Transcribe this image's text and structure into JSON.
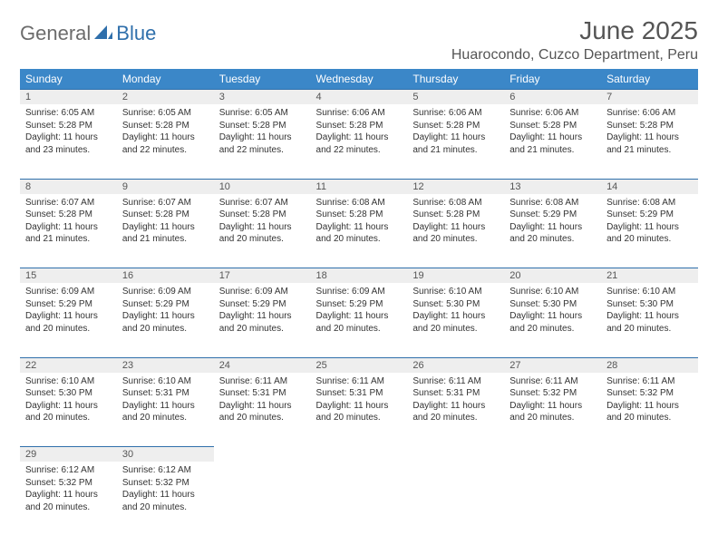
{
  "brand": {
    "part1": "General",
    "part2": "Blue"
  },
  "title": "June 2025",
  "location": "Huarocondo, Cuzco Department, Peru",
  "colors": {
    "header_bg": "#3b87c8",
    "header_text": "#ffffff",
    "daynum_bg": "#eeeeee",
    "daynum_border": "#2f6fab",
    "text": "#333333",
    "title_text": "#555555",
    "logo_gray": "#6c6c6c",
    "logo_blue": "#2f6fab"
  },
  "weekdays": [
    "Sunday",
    "Monday",
    "Tuesday",
    "Wednesday",
    "Thursday",
    "Friday",
    "Saturday"
  ],
  "weeks": [
    [
      {
        "n": "1",
        "sunrise": "Sunrise: 6:05 AM",
        "sunset": "Sunset: 5:28 PM",
        "day1": "Daylight: 11 hours",
        "day2": "and 23 minutes."
      },
      {
        "n": "2",
        "sunrise": "Sunrise: 6:05 AM",
        "sunset": "Sunset: 5:28 PM",
        "day1": "Daylight: 11 hours",
        "day2": "and 22 minutes."
      },
      {
        "n": "3",
        "sunrise": "Sunrise: 6:05 AM",
        "sunset": "Sunset: 5:28 PM",
        "day1": "Daylight: 11 hours",
        "day2": "and 22 minutes."
      },
      {
        "n": "4",
        "sunrise": "Sunrise: 6:06 AM",
        "sunset": "Sunset: 5:28 PM",
        "day1": "Daylight: 11 hours",
        "day2": "and 22 minutes."
      },
      {
        "n": "5",
        "sunrise": "Sunrise: 6:06 AM",
        "sunset": "Sunset: 5:28 PM",
        "day1": "Daylight: 11 hours",
        "day2": "and 21 minutes."
      },
      {
        "n": "6",
        "sunrise": "Sunrise: 6:06 AM",
        "sunset": "Sunset: 5:28 PM",
        "day1": "Daylight: 11 hours",
        "day2": "and 21 minutes."
      },
      {
        "n": "7",
        "sunrise": "Sunrise: 6:06 AM",
        "sunset": "Sunset: 5:28 PM",
        "day1": "Daylight: 11 hours",
        "day2": "and 21 minutes."
      }
    ],
    [
      {
        "n": "8",
        "sunrise": "Sunrise: 6:07 AM",
        "sunset": "Sunset: 5:28 PM",
        "day1": "Daylight: 11 hours",
        "day2": "and 21 minutes."
      },
      {
        "n": "9",
        "sunrise": "Sunrise: 6:07 AM",
        "sunset": "Sunset: 5:28 PM",
        "day1": "Daylight: 11 hours",
        "day2": "and 21 minutes."
      },
      {
        "n": "10",
        "sunrise": "Sunrise: 6:07 AM",
        "sunset": "Sunset: 5:28 PM",
        "day1": "Daylight: 11 hours",
        "day2": "and 20 minutes."
      },
      {
        "n": "11",
        "sunrise": "Sunrise: 6:08 AM",
        "sunset": "Sunset: 5:28 PM",
        "day1": "Daylight: 11 hours",
        "day2": "and 20 minutes."
      },
      {
        "n": "12",
        "sunrise": "Sunrise: 6:08 AM",
        "sunset": "Sunset: 5:28 PM",
        "day1": "Daylight: 11 hours",
        "day2": "and 20 minutes."
      },
      {
        "n": "13",
        "sunrise": "Sunrise: 6:08 AM",
        "sunset": "Sunset: 5:29 PM",
        "day1": "Daylight: 11 hours",
        "day2": "and 20 minutes."
      },
      {
        "n": "14",
        "sunrise": "Sunrise: 6:08 AM",
        "sunset": "Sunset: 5:29 PM",
        "day1": "Daylight: 11 hours",
        "day2": "and 20 minutes."
      }
    ],
    [
      {
        "n": "15",
        "sunrise": "Sunrise: 6:09 AM",
        "sunset": "Sunset: 5:29 PM",
        "day1": "Daylight: 11 hours",
        "day2": "and 20 minutes."
      },
      {
        "n": "16",
        "sunrise": "Sunrise: 6:09 AM",
        "sunset": "Sunset: 5:29 PM",
        "day1": "Daylight: 11 hours",
        "day2": "and 20 minutes."
      },
      {
        "n": "17",
        "sunrise": "Sunrise: 6:09 AM",
        "sunset": "Sunset: 5:29 PM",
        "day1": "Daylight: 11 hours",
        "day2": "and 20 minutes."
      },
      {
        "n": "18",
        "sunrise": "Sunrise: 6:09 AM",
        "sunset": "Sunset: 5:29 PM",
        "day1": "Daylight: 11 hours",
        "day2": "and 20 minutes."
      },
      {
        "n": "19",
        "sunrise": "Sunrise: 6:10 AM",
        "sunset": "Sunset: 5:30 PM",
        "day1": "Daylight: 11 hours",
        "day2": "and 20 minutes."
      },
      {
        "n": "20",
        "sunrise": "Sunrise: 6:10 AM",
        "sunset": "Sunset: 5:30 PM",
        "day1": "Daylight: 11 hours",
        "day2": "and 20 minutes."
      },
      {
        "n": "21",
        "sunrise": "Sunrise: 6:10 AM",
        "sunset": "Sunset: 5:30 PM",
        "day1": "Daylight: 11 hours",
        "day2": "and 20 minutes."
      }
    ],
    [
      {
        "n": "22",
        "sunrise": "Sunrise: 6:10 AM",
        "sunset": "Sunset: 5:30 PM",
        "day1": "Daylight: 11 hours",
        "day2": "and 20 minutes."
      },
      {
        "n": "23",
        "sunrise": "Sunrise: 6:10 AM",
        "sunset": "Sunset: 5:31 PM",
        "day1": "Daylight: 11 hours",
        "day2": "and 20 minutes."
      },
      {
        "n": "24",
        "sunrise": "Sunrise: 6:11 AM",
        "sunset": "Sunset: 5:31 PM",
        "day1": "Daylight: 11 hours",
        "day2": "and 20 minutes."
      },
      {
        "n": "25",
        "sunrise": "Sunrise: 6:11 AM",
        "sunset": "Sunset: 5:31 PM",
        "day1": "Daylight: 11 hours",
        "day2": "and 20 minutes."
      },
      {
        "n": "26",
        "sunrise": "Sunrise: 6:11 AM",
        "sunset": "Sunset: 5:31 PM",
        "day1": "Daylight: 11 hours",
        "day2": "and 20 minutes."
      },
      {
        "n": "27",
        "sunrise": "Sunrise: 6:11 AM",
        "sunset": "Sunset: 5:32 PM",
        "day1": "Daylight: 11 hours",
        "day2": "and 20 minutes."
      },
      {
        "n": "28",
        "sunrise": "Sunrise: 6:11 AM",
        "sunset": "Sunset: 5:32 PM",
        "day1": "Daylight: 11 hours",
        "day2": "and 20 minutes."
      }
    ],
    [
      {
        "n": "29",
        "sunrise": "Sunrise: 6:12 AM",
        "sunset": "Sunset: 5:32 PM",
        "day1": "Daylight: 11 hours",
        "day2": "and 20 minutes."
      },
      {
        "n": "30",
        "sunrise": "Sunrise: 6:12 AM",
        "sunset": "Sunset: 5:32 PM",
        "day1": "Daylight: 11 hours",
        "day2": "and 20 minutes."
      },
      null,
      null,
      null,
      null,
      null
    ]
  ]
}
